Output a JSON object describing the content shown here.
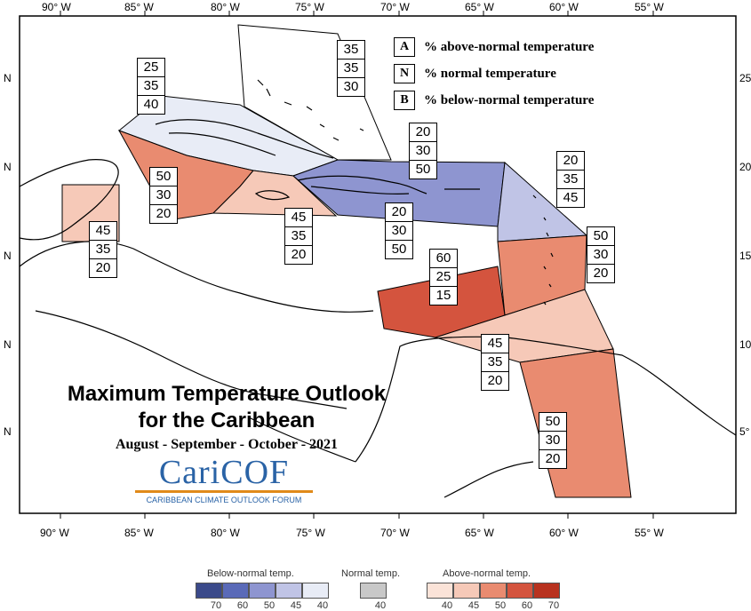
{
  "map": {
    "lon_ticks": [
      "90° W",
      "85° W",
      "80° W",
      "75° W",
      "70° W",
      "65° W",
      "60° W",
      "55° W"
    ],
    "lat_left_ticks": [
      "N",
      "N",
      "N",
      "N",
      "N"
    ],
    "lat_right_ticks": [
      "25",
      "20",
      "15",
      "10",
      "5°"
    ]
  },
  "legend": {
    "items": [
      {
        "key": "A",
        "text": "% above-normal temperature"
      },
      {
        "key": "N",
        "text": "% normal temperature"
      },
      {
        "key": "B",
        "text": "% below-normal temperature"
      }
    ]
  },
  "title": {
    "line1": "Maximum Temperature Outlook",
    "line2": "for the Caribbean",
    "period": "August - September - October - 2021"
  },
  "logo": {
    "name": "CariCOF",
    "full": "CARIBBEAN CLIMATE OUTLOOK FORUM"
  },
  "regions": [
    {
      "id": "bahamas",
      "A": "35",
      "N": "35",
      "B": "30",
      "color": "#ffffff"
    },
    {
      "id": "cuba",
      "A": "25",
      "N": "35",
      "B": "40",
      "color": "#e8ecf6"
    },
    {
      "id": "cayman",
      "A": "50",
      "N": "30",
      "B": "20",
      "color": "#e98b70"
    },
    {
      "id": "belize",
      "A": "45",
      "N": "35",
      "B": "20",
      "color": "#f6c9b8"
    },
    {
      "id": "jamaica",
      "A": "45",
      "N": "35",
      "B": "20",
      "color": "#f6c9b8"
    },
    {
      "id": "hispaniola-pr",
      "A": "20",
      "N": "30",
      "B": "50",
      "color": "#8e95d0"
    },
    {
      "id": "turks-caicos",
      "A": "20",
      "N": "30",
      "B": "50",
      "color": "#8e95d0"
    },
    {
      "id": "leeward",
      "A": "20",
      "N": "35",
      "B": "45",
      "color": "#c0c4e6"
    },
    {
      "id": "windward",
      "A": "50",
      "N": "30",
      "B": "20",
      "color": "#e98b70"
    },
    {
      "id": "abc",
      "A": "60",
      "N": "25",
      "B": "15",
      "color": "#d4543e"
    },
    {
      "id": "trinidad",
      "A": "45",
      "N": "35",
      "B": "20",
      "color": "#f6c9b8"
    },
    {
      "id": "guianas",
      "A": "50",
      "N": "30",
      "B": "20",
      "color": "#e98b70"
    }
  ],
  "colorbar": {
    "below_label": "Below-normal temp.",
    "normal_label": "Normal temp.",
    "above_label": "Above-normal temp.",
    "below_colors": [
      "#3b4a8a",
      "#5a6ab8",
      "#8e95d0",
      "#c0c4e6",
      "#e8ecf6"
    ],
    "below_values": [
      "70",
      "60",
      "50",
      "45",
      "40"
    ],
    "normal_color": "#c8c8c8",
    "normal_value": "40",
    "above_colors": [
      "#fbe3d8",
      "#f6c9b8",
      "#e98b70",
      "#d4543e",
      "#b8321f"
    ],
    "above_values": [
      "40",
      "45",
      "50",
      "60",
      "70"
    ]
  }
}
